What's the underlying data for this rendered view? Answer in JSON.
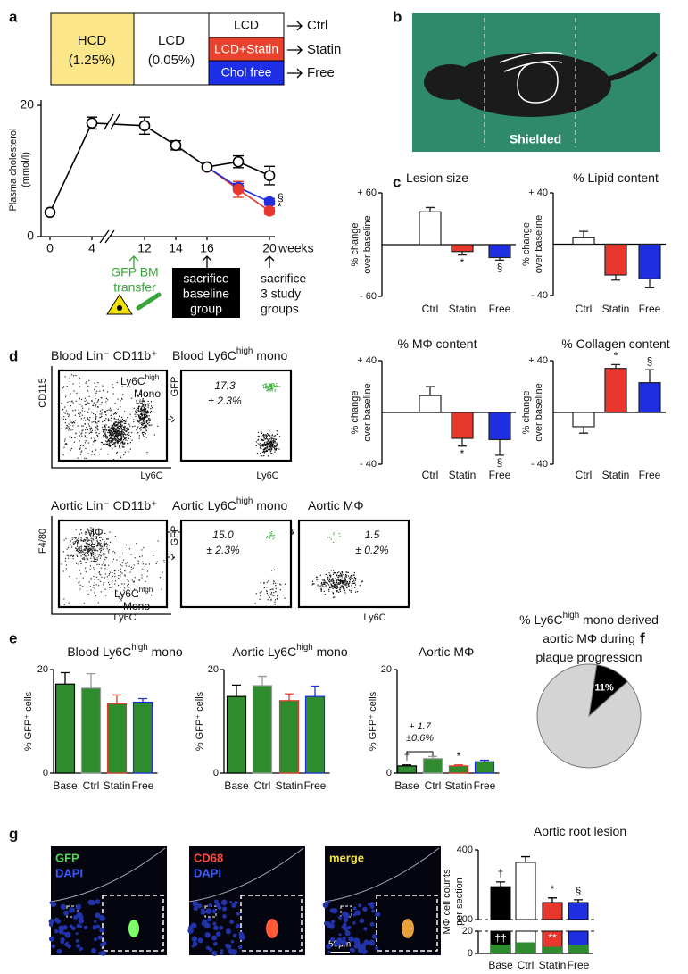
{
  "panel_labels": [
    "a",
    "b",
    "c",
    "d",
    "e",
    "f",
    "g"
  ],
  "scheme": {
    "boxes": [
      [
        "HCD",
        "(1.25%)"
      ],
      [
        "LCD",
        "(0.05%)"
      ],
      [
        "LCD"
      ],
      [
        "LCD+Statin"
      ],
      [
        "Chol free"
      ]
    ],
    "arms": [
      "Ctrl",
      "Statin",
      "Free"
    ],
    "events": [
      [
        "GFP BM",
        "transfer"
      ],
      [
        "sacrifice",
        "baseline",
        "group"
      ],
      [
        "sacrifice",
        "3 study",
        "groups"
      ]
    ]
  },
  "photo": {
    "label": "Shielded"
  },
  "flow": {
    "plots": [
      {
        "title": [
          "Blood Lin⁻ CD11b⁺"
        ],
        "ylabel": "CD115",
        "xlabel": "Ly6C",
        "gates": [
          [
            [
              "Ly6C",
              "high"
            ],
            [
              "Mono"
            ]
          ]
        ]
      },
      {
        "title": [
          "Blood Ly6C",
          "high",
          " mono"
        ],
        "ylabel": "GFP",
        "xlabel": "Ly6C",
        "stat": [
          "17.3",
          "± 2.3%"
        ]
      },
      {
        "title": [
          "Aortic Lin⁻ CD11b⁺"
        ],
        "ylabel": "F4/80",
        "xlabel": "Ly6C",
        "gates": [
          [
            [
              "MΦ"
            ]
          ],
          [
            [
              "Ly6C",
              "high"
            ],
            [
              "Mono"
            ]
          ]
        ]
      },
      {
        "title": [
          "Aortic Ly6C",
          "high",
          " mono"
        ],
        "ylabel": "GFP",
        "stat": [
          "15.0",
          "± 2.3%"
        ]
      },
      {
        "title": [
          "Aortic MΦ"
        ],
        "xlabel": "Ly6C",
        "stat": [
          "1.5",
          "± 0.2%"
        ]
      }
    ]
  },
  "micro": {
    "panels": [
      [
        "GFP",
        "DAPI"
      ],
      [
        "CD68",
        "DAPI"
      ],
      [
        "merge"
      ]
    ],
    "scale": "50μm"
  },
  "chart_data": [
    {
      "type": "line",
      "ylabel": [
        "Plasma cholesterol",
        "(mmol/l)"
      ],
      "x": [
        0,
        4,
        12,
        14,
        16,
        18,
        20
      ],
      "xlim": [
        0,
        20
      ],
      "xbreak": [
        4,
        12
      ],
      "xticks": [
        0,
        4,
        12,
        14,
        16,
        20
      ],
      "xlabel": "weeks",
      "ylim": [
        0,
        20
      ],
      "yticks": [
        0,
        20
      ],
      "series": [
        {
          "color": "#000000",
          "fill": "#ffffff",
          "values": [
            3.7,
            17.3,
            16.9,
            13.9,
            10.6,
            11.4,
            9.3
          ],
          "errors": [
            0.3,
            0.9,
            1.3,
            0.7,
            0.3,
            0.9,
            1.4
          ]
        },
        {
          "color": "#e8382e",
          "fill": "#e8382e",
          "values": [
            null,
            null,
            null,
            null,
            10.6,
            7.2,
            3.9
          ],
          "errors": [
            null,
            null,
            null,
            null,
            0.3,
            1.2,
            0.5
          ],
          "marker": "*"
        },
        {
          "color": "#1f2ee0",
          "fill": "#1f2ee0",
          "values": [
            null,
            null,
            null,
            null,
            10.6,
            7.5,
            5.3
          ],
          "errors": [
            null,
            null,
            null,
            null,
            0.3,
            0.6,
            0.5
          ],
          "marker": "§"
        }
      ]
    },
    {
      "type": "bar",
      "title": [
        "Lesion size"
      ],
      "ylabel": [
        "% change",
        "over baseline"
      ],
      "categories": [
        "Ctrl",
        "Statin",
        "Free"
      ],
      "values": [
        38,
        -8,
        -15
      ],
      "errors": [
        5,
        4,
        3
      ],
      "colors": [
        "#ffffff",
        "#e8382e",
        "#1f2ee0"
      ],
      "markers": [
        null,
        "*",
        "§"
      ],
      "ylim": [
        -60,
        60
      ],
      "yticks": [
        {
          "value": 60,
          "label": "+ 60"
        },
        {
          "value": -60,
          "label": "- 60"
        }
      ]
    },
    {
      "type": "bar",
      "title": [
        "% Lipid content"
      ],
      "ylabel": [
        "% change",
        "over baseline"
      ],
      "categories": [
        "Ctrl",
        "Statin",
        "Free"
      ],
      "values": [
        5,
        -24,
        -27
      ],
      "errors": [
        5,
        4,
        7
      ],
      "colors": [
        "#ffffff",
        "#e8382e",
        "#1f2ee0"
      ],
      "ylim": [
        -40,
        40
      ],
      "yticks": [
        {
          "value": 40,
          "label": "+ 40"
        },
        {
          "value": -40,
          "label": "- 40"
        }
      ]
    },
    {
      "type": "bar",
      "title": [
        "% MΦ content"
      ],
      "ylabel": [
        "% change",
        "over baseline"
      ],
      "categories": [
        "Ctrl",
        "Statin",
        "Free"
      ],
      "values": [
        13,
        -20,
        -21
      ],
      "errors": [
        7,
        6,
        12
      ],
      "colors": [
        "#ffffff",
        "#e8382e",
        "#1f2ee0"
      ],
      "markers": [
        null,
        "*",
        "§"
      ],
      "ylim": [
        -40,
        40
      ],
      "yticks": [
        {
          "value": 40,
          "label": "+ 40"
        },
        {
          "value": -40,
          "label": "- 40"
        }
      ]
    },
    {
      "type": "bar",
      "title": [
        "% Collagen content"
      ],
      "ylabel": [
        "% change",
        "over baseline"
      ],
      "categories": [
        "Ctrl",
        "Statin",
        "Free"
      ],
      "values": [
        -11,
        34,
        23
      ],
      "errors": [
        5,
        3,
        10
      ],
      "colors": [
        "#ffffff",
        "#e8382e",
        "#1f2ee0"
      ],
      "markers": [
        null,
        "*",
        "§"
      ],
      "ylim": [
        -40,
        40
      ],
      "yticks": [
        {
          "value": 40,
          "label": "+ 40"
        },
        {
          "value": -40,
          "label": "- 40"
        }
      ]
    },
    {
      "type": "bar",
      "title": [
        "Blood Ly6C",
        "high",
        " mono"
      ],
      "ylabel": [
        "% GFP⁺ cells"
      ],
      "categories": [
        "Base",
        "Ctrl",
        "Statin",
        "Free"
      ],
      "values": [
        17.2,
        16.4,
        13.4,
        13.7
      ],
      "errors": [
        2.2,
        2.8,
        1.7,
        0.7
      ],
      "colors": [
        "#2e8b2e",
        "#2e8b2e",
        "#2e8b2e",
        "#2e8b2e"
      ],
      "edges": [
        "#000000",
        "#999999",
        "#e8382e",
        "#1f2ee0"
      ],
      "ylim": [
        0,
        20
      ],
      "yticks": [
        0,
        20
      ]
    },
    {
      "type": "bar",
      "title": [
        "Aortic Ly6C",
        "high",
        " mono"
      ],
      "ylabel": [
        "% GFP⁺ cells"
      ],
      "categories": [
        "Base",
        "Ctrl",
        "Statin",
        "Free"
      ],
      "values": [
        14.8,
        16.9,
        14.0,
        14.8
      ],
      "errors": [
        2.2,
        1.8,
        1.3,
        2.0
      ],
      "colors": [
        "#2e8b2e",
        "#2e8b2e",
        "#2e8b2e",
        "#2e8b2e"
      ],
      "edges": [
        "#000000",
        "#999999",
        "#e8382e",
        "#1f2ee0"
      ],
      "ylim": [
        0,
        20
      ],
      "yticks": [
        0,
        20
      ]
    },
    {
      "type": "bar",
      "title": [
        "Aortic MΦ"
      ],
      "ylabel": [
        "% GFP⁺ cells"
      ],
      "categories": [
        "Base",
        "Ctrl",
        "Statin",
        "Free"
      ],
      "values": [
        1.4,
        2.8,
        1.4,
        2.2
      ],
      "errors": [
        0.2,
        0.4,
        0.2,
        0.3
      ],
      "colors": [
        "#2e8b2e",
        "#2e8b2e",
        "#2e8b2e",
        "#2e8b2e"
      ],
      "edges": [
        "#000000",
        "#999999",
        "#e8382e",
        "#1f2ee0"
      ],
      "markers": [
        "†",
        null,
        "*",
        null
      ],
      "annotation": [
        "+ 1.7",
        "±0.6%"
      ],
      "ylim": [
        0,
        20
      ],
      "yticks": [
        0,
        20
      ]
    },
    {
      "type": "pie",
      "title_lines": [
        [
          "% Ly6C",
          "high",
          " mono derived"
        ],
        [
          "aortic MΦ during"
        ],
        [
          "plaque progression"
        ]
      ],
      "values": [
        11,
        89
      ],
      "value_labels": [
        "11%",
        null
      ],
      "colors": [
        "#000000",
        "#d4d4d4"
      ]
    },
    {
      "type": "bar",
      "title": [
        "Aortic root lesion"
      ],
      "ylabel": [
        "MΦ cell counts",
        "per section"
      ],
      "categories": [
        "Base",
        "Ctrl",
        "Statin",
        "Free"
      ],
      "ylim": [
        0,
        400
      ],
      "ybreak": [
        20,
        100
      ],
      "yticks": [
        0,
        20,
        100,
        400
      ],
      "series": [
        {
          "values": [
            242,
            346,
            173,
            173
          ],
          "errors": [
            20,
            25,
            20,
            12
          ],
          "colors": [
            "#000000",
            "#ffffff",
            "#e8382e",
            "#1f2ee0"
          ],
          "markers": [
            "†",
            null,
            "*",
            "§"
          ],
          "inner_markers": [
            "††",
            null,
            "**",
            null
          ]
        },
        {
          "values": [
            8,
            10,
            6,
            8
          ],
          "color": "#2e8b2e"
        }
      ]
    }
  ]
}
